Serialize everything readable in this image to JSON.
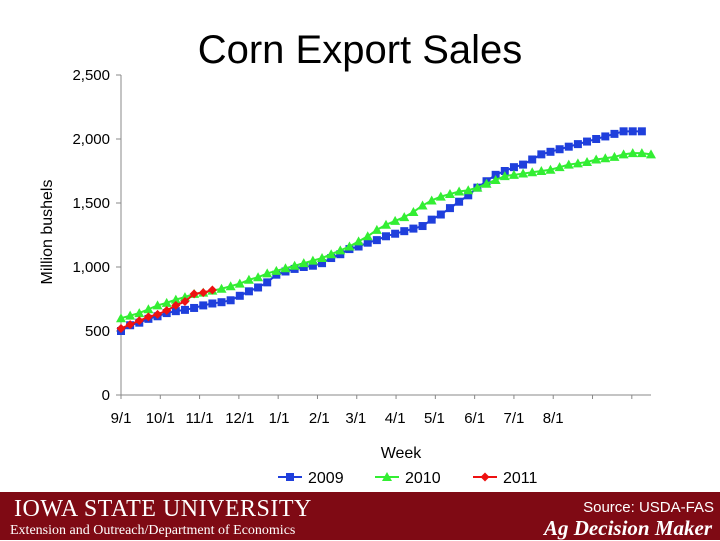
{
  "slide": {
    "title": "Corn Export Sales",
    "footer": {
      "logo": "IOWA STATE UNIVERSITY",
      "department": "Extension and Outreach/Department of Economics",
      "source": "Source: USDA-FAS",
      "brand": "Ag Decision Maker"
    }
  },
  "colors": {
    "2009": "#1f3fdc",
    "2010": "#33ee33",
    "2011": "#ee1111",
    "footer": "#7f0a14"
  },
  "chart_data": {
    "type": "line",
    "title": "Corn Export Sales",
    "xlabel": "Week",
    "ylabel": "Million bushels",
    "ylim": [
      0,
      2500
    ],
    "yticks": [
      0,
      500,
      1000,
      1500,
      2000,
      2500
    ],
    "ytick_labels": [
      "0",
      "500",
      "1,000",
      "1,500",
      "2,000",
      "2,500"
    ],
    "xticks": [
      "9/1",
      "10/1",
      "11/1",
      "12/1",
      "1/1",
      "2/1",
      "3/1",
      "4/1",
      "5/1",
      "6/1",
      "7/1",
      "8/1"
    ],
    "x_unit": "week",
    "legend_position": "bottom",
    "grid": false,
    "series": [
      {
        "name": "2009",
        "marker": "square",
        "values": [
          500,
          545,
          565,
          595,
          615,
          640,
          655,
          665,
          680,
          700,
          715,
          725,
          740,
          775,
          810,
          840,
          880,
          940,
          965,
          985,
          1000,
          1010,
          1030,
          1070,
          1100,
          1140,
          1160,
          1190,
          1210,
          1240,
          1260,
          1280,
          1300,
          1320,
          1370,
          1410,
          1460,
          1510,
          1560,
          1620,
          1670,
          1720,
          1750,
          1780,
          1800,
          1840,
          1880,
          1900,
          1920,
          1940,
          1960,
          1980,
          2000,
          2020,
          2040,
          2060,
          2060,
          2060
        ]
      },
      {
        "name": "2010",
        "marker": "triangle",
        "values": [
          600,
          620,
          640,
          670,
          700,
          720,
          745,
          765,
          790,
          800,
          815,
          830,
          850,
          870,
          900,
          920,
          950,
          970,
          990,
          1010,
          1030,
          1050,
          1070,
          1100,
          1130,
          1160,
          1200,
          1240,
          1290,
          1330,
          1360,
          1390,
          1430,
          1480,
          1520,
          1550,
          1570,
          1590,
          1600,
          1620,
          1650,
          1680,
          1710,
          1720,
          1730,
          1740,
          1750,
          1760,
          1780,
          1800,
          1810,
          1820,
          1840,
          1850,
          1860,
          1880,
          1890,
          1890,
          1880
        ]
      },
      {
        "name": "2011",
        "values": [
          520,
          550,
          580,
          610,
          630,
          660,
          700,
          730,
          790,
          800,
          820
        ],
        "marker": "diamond"
      }
    ]
  }
}
